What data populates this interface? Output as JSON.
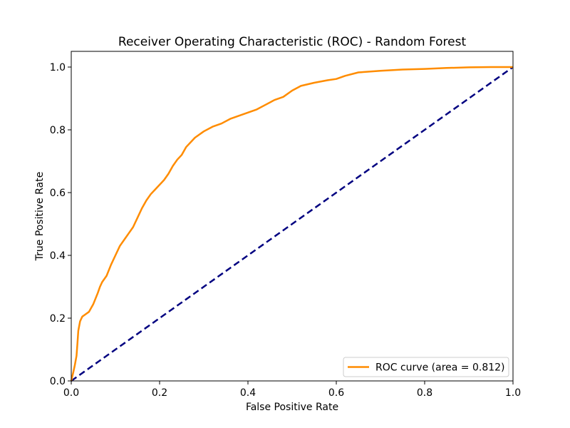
{
  "chart_data": {
    "type": "line",
    "title": "Receiver Operating Characteristic (ROC) - Random Forest",
    "xlabel": "False Positive Rate",
    "ylabel": "True Positive Rate",
    "xlim": [
      0.0,
      1.0
    ],
    "ylim": [
      0.0,
      1.05
    ],
    "x_ticks": [
      0.0,
      0.2,
      0.4,
      0.6,
      0.8,
      1.0
    ],
    "x_tick_labels": [
      "0.0",
      "0.2",
      "0.4",
      "0.6",
      "0.8",
      "1.0"
    ],
    "y_ticks": [
      0.0,
      0.2,
      0.4,
      0.6,
      0.8,
      1.0
    ],
    "y_tick_labels": [
      "0.0",
      "0.2",
      "0.4",
      "0.6",
      "0.8",
      "1.0"
    ],
    "grid": false,
    "legend_position": "lower-right",
    "series": [
      {
        "name": "ROC curve (area = 0.812)",
        "color": "#ff8c00",
        "style": "solid",
        "x": [
          0.0,
          0.005,
          0.008,
          0.012,
          0.014,
          0.016,
          0.02,
          0.025,
          0.03,
          0.04,
          0.05,
          0.06,
          0.065,
          0.07,
          0.08,
          0.09,
          0.1,
          0.11,
          0.12,
          0.13,
          0.14,
          0.15,
          0.16,
          0.17,
          0.18,
          0.19,
          0.2,
          0.21,
          0.22,
          0.23,
          0.24,
          0.25,
          0.26,
          0.27,
          0.28,
          0.3,
          0.32,
          0.34,
          0.36,
          0.38,
          0.4,
          0.42,
          0.44,
          0.46,
          0.48,
          0.5,
          0.52,
          0.55,
          0.58,
          0.6,
          0.62,
          0.65,
          0.7,
          0.75,
          0.8,
          0.85,
          0.9,
          0.95,
          1.0
        ],
        "y": [
          0.0,
          0.03,
          0.05,
          0.08,
          0.12,
          0.16,
          0.19,
          0.205,
          0.21,
          0.22,
          0.245,
          0.28,
          0.3,
          0.315,
          0.335,
          0.37,
          0.4,
          0.43,
          0.45,
          0.47,
          0.49,
          0.52,
          0.55,
          0.575,
          0.595,
          0.61,
          0.625,
          0.64,
          0.66,
          0.685,
          0.705,
          0.72,
          0.745,
          0.76,
          0.775,
          0.795,
          0.81,
          0.82,
          0.835,
          0.845,
          0.855,
          0.865,
          0.88,
          0.895,
          0.905,
          0.925,
          0.94,
          0.95,
          0.958,
          0.962,
          0.972,
          0.983,
          0.988,
          0.992,
          0.994,
          0.997,
          0.999,
          1.0,
          1.0
        ]
      },
      {
        "name": "",
        "color": "#000080",
        "style": "dashed",
        "x": [
          0.0,
          1.0
        ],
        "y": [
          0.0,
          1.0
        ]
      }
    ]
  }
}
